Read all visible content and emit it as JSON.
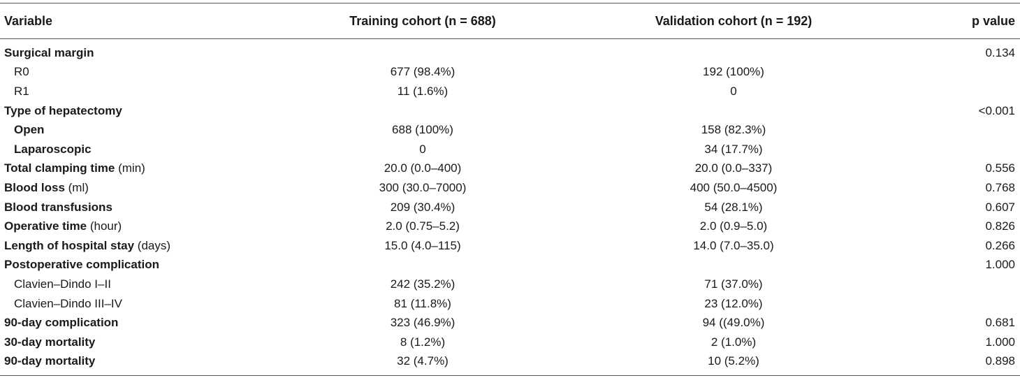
{
  "headers": {
    "variable": "Variable",
    "training": "Training cohort (n = 688)",
    "validation": "Validation cohort (n = 192)",
    "p": "p value"
  },
  "rows": [
    {
      "label": "Surgical margin",
      "unit": "",
      "level": 1,
      "bold": true,
      "training": "",
      "validation": "",
      "p": "0.134"
    },
    {
      "label": "R0",
      "unit": "",
      "level": 2,
      "bold": false,
      "training": "677 (98.4%)",
      "validation": "192 (100%)",
      "p": ""
    },
    {
      "label": "R1",
      "unit": "",
      "level": 2,
      "bold": false,
      "training": "11 (1.6%)",
      "validation": "0",
      "p": ""
    },
    {
      "label": "Type of hepatectomy",
      "unit": "",
      "level": 1,
      "bold": true,
      "training": "",
      "validation": "",
      "p": "<0.001"
    },
    {
      "label": "Open",
      "unit": "",
      "level": 2,
      "bold": true,
      "training": "688 (100%)",
      "validation": "158 (82.3%)",
      "p": ""
    },
    {
      "label": "Laparoscopic",
      "unit": "",
      "level": 2,
      "bold": true,
      "training": "0",
      "validation": "34 (17.7%)",
      "p": ""
    },
    {
      "label": "Total clamping time",
      "unit": " (min)",
      "level": 1,
      "bold": true,
      "training": "20.0 (0.0–400)",
      "validation": "20.0 (0.0–337)",
      "p": "0.556"
    },
    {
      "label": "Blood loss",
      "unit": " (ml)",
      "level": 1,
      "bold": true,
      "training": "300 (30.0–7000)",
      "validation": "400 (50.0–4500)",
      "p": "0.768"
    },
    {
      "label": "Blood transfusions",
      "unit": "",
      "level": 1,
      "bold": true,
      "training": "209 (30.4%)",
      "validation": "54 (28.1%)",
      "p": "0.607"
    },
    {
      "label": "Operative time",
      "unit": " (hour)",
      "level": 1,
      "bold": true,
      "training": "2.0 (0.75–5.2)",
      "validation": "2.0 (0.9–5.0)",
      "p": "0.826"
    },
    {
      "label": "Length of hospital stay",
      "unit": " (days)",
      "level": 1,
      "bold": true,
      "training": "15.0 (4.0–115)",
      "validation": "14.0 (7.0–35.0)",
      "p": "0.266"
    },
    {
      "label": "Postoperative complication",
      "unit": "",
      "level": 1,
      "bold": true,
      "training": "",
      "validation": "",
      "p": "1.000"
    },
    {
      "label": "Clavien–Dindo I–II",
      "unit": "",
      "level": 2,
      "bold": false,
      "training": "242 (35.2%)",
      "validation": "71 (37.0%)",
      "p": ""
    },
    {
      "label": "Clavien–Dindo III–IV",
      "unit": "",
      "level": 2,
      "bold": false,
      "training": "81 (11.8%)",
      "validation": "23 (12.0%)",
      "p": ""
    },
    {
      "label": "90-day complication",
      "unit": "",
      "level": 1,
      "bold": true,
      "training": "323 (46.9%)",
      "validation": "94 ((49.0%)",
      "p": "0.681"
    },
    {
      "label": "30-day mortality",
      "unit": "",
      "level": 1,
      "bold": true,
      "training": "8 (1.2%)",
      "validation": "2 (1.0%)",
      "p": "1.000"
    },
    {
      "label": "90-day mortality",
      "unit": "",
      "level": 1,
      "bold": true,
      "training": "32 (4.7%)",
      "validation": "10 (5.2%)",
      "p": "0.898"
    }
  ]
}
